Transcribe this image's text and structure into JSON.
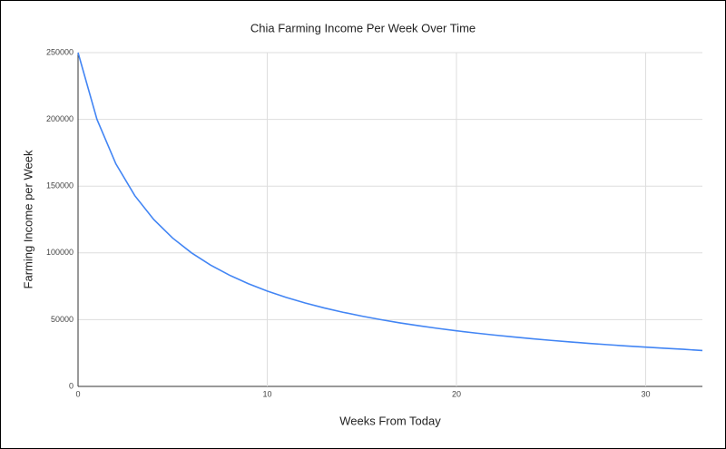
{
  "chart_data": {
    "type": "line",
    "title": "Chia Farming Income Per Week Over Time",
    "x_label": "Weeks From Today",
    "y_label": "Farming Income per Week",
    "x": [
      0,
      1,
      2,
      3,
      4,
      5,
      6,
      7,
      8,
      9,
      10,
      11,
      12,
      13,
      14,
      15,
      16,
      17,
      18,
      19,
      20,
      21,
      22,
      23,
      24,
      25,
      26,
      27,
      28,
      29,
      30,
      31,
      32,
      33
    ],
    "series": [
      {
        "name": "Farming Income per Week",
        "color": "#4285f4",
        "values": [
          250000,
          200000,
          166667,
          142857,
          125000,
          111111,
          100000,
          90909,
          83333,
          76923,
          71429,
          66667,
          62500,
          58824,
          55556,
          52632,
          50000,
          47619,
          45455,
          43478,
          41667,
          40000,
          38462,
          37037,
          35714,
          34483,
          33333,
          32258,
          31250,
          30303,
          29412,
          28571,
          27778,
          26866
        ]
      }
    ],
    "xlim": [
      0,
      33
    ],
    "xticks": [
      0,
      10,
      20,
      30
    ],
    "ylim": [
      0,
      250000
    ],
    "yticks": [
      0,
      50000,
      100000,
      150000,
      200000,
      250000
    ],
    "grid": true
  }
}
